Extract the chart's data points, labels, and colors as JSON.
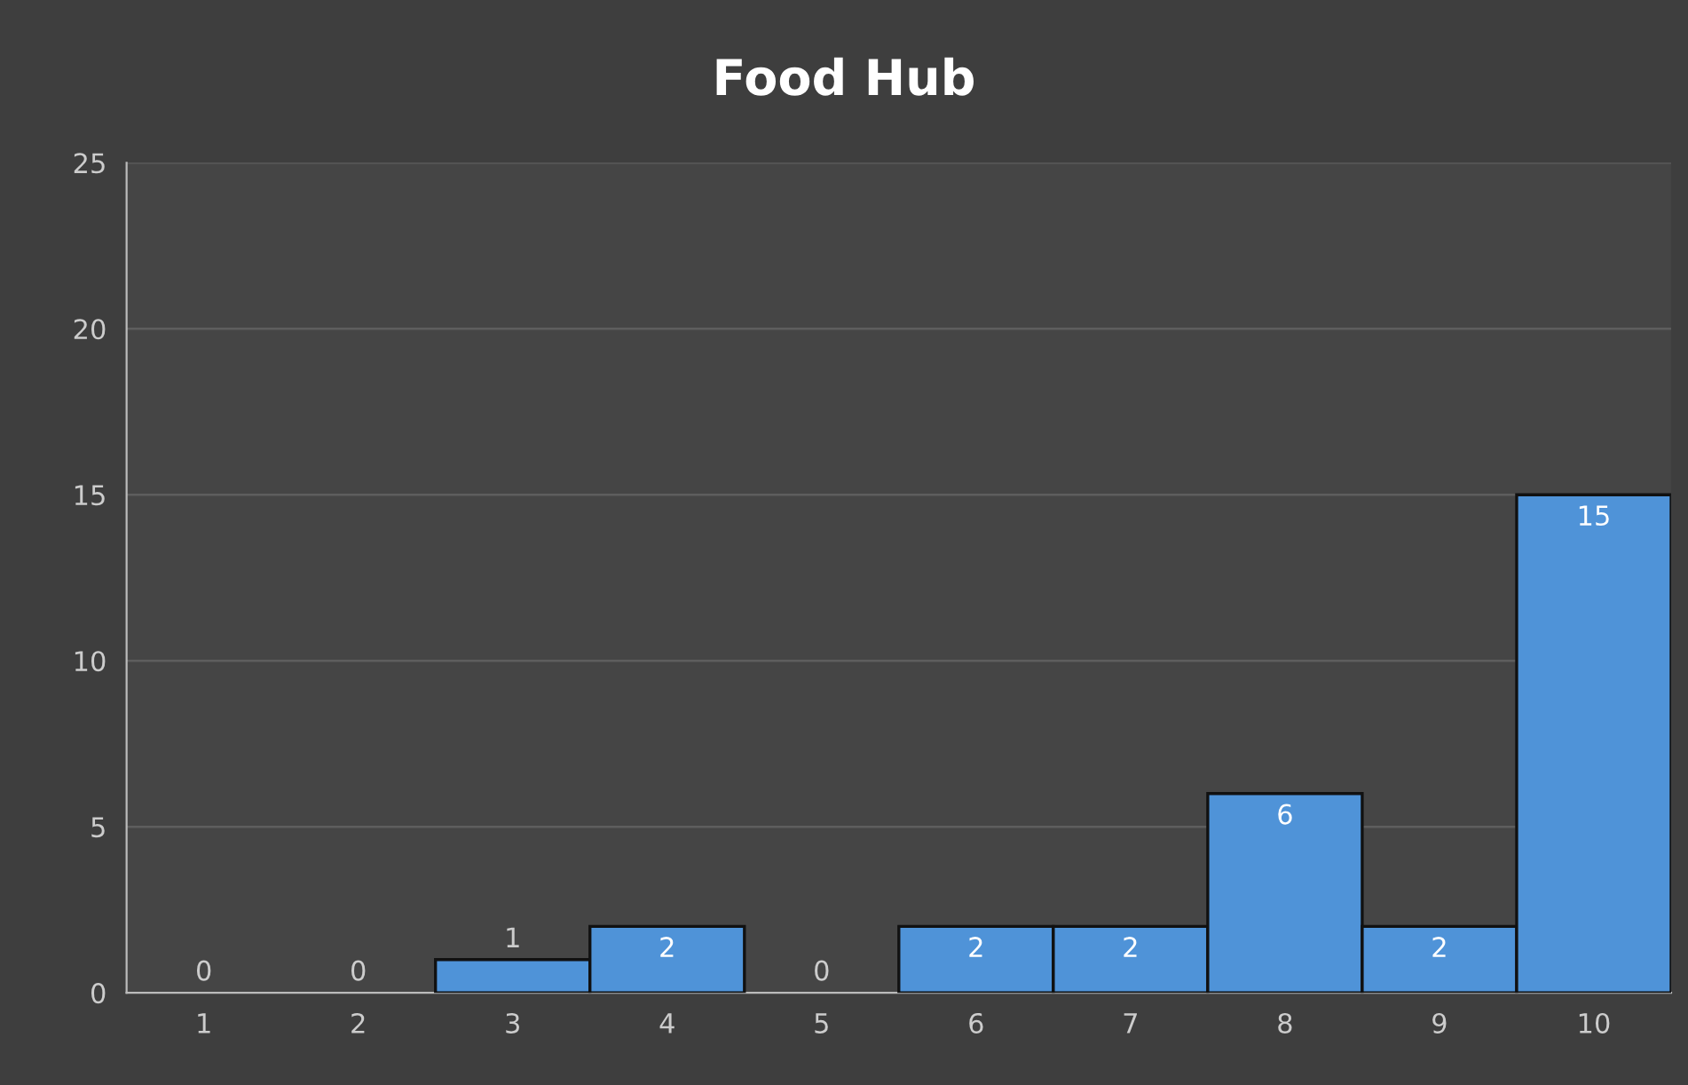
{
  "chart_data": {
    "type": "bar",
    "title": "Food Hub",
    "categories": [
      "1",
      "2",
      "3",
      "4",
      "5",
      "6",
      "7",
      "8",
      "9",
      "10"
    ],
    "values": [
      0,
      0,
      1,
      2,
      0,
      2,
      2,
      6,
      2,
      15
    ],
    "color": "#4f93d8",
    "ylim": [
      0,
      25
    ],
    "yticks": [
      0,
      5,
      10,
      15,
      20,
      25
    ],
    "grid": "y",
    "data_labels": true
  }
}
